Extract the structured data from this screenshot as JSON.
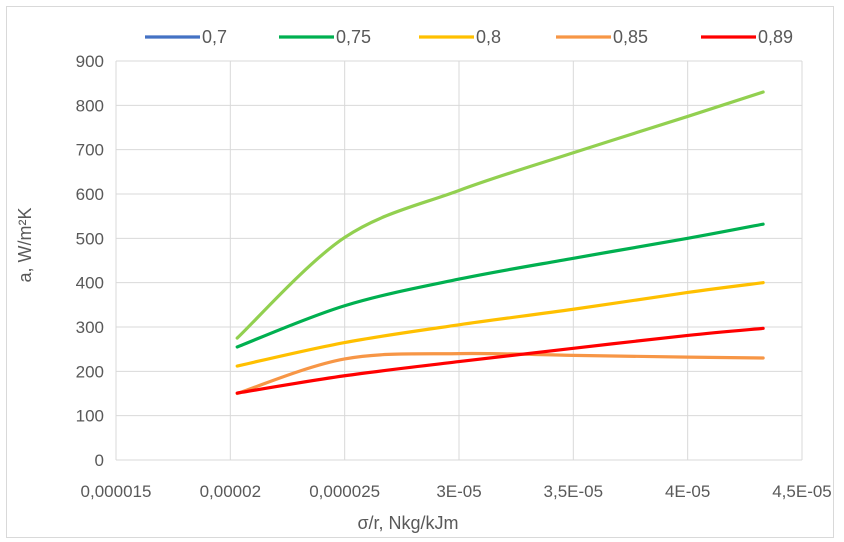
{
  "chart_data": {
    "type": "line",
    "title": "",
    "xlabel": "σ/r, Nkg/kJm",
    "ylabel": "a, W/m²K",
    "xlim": [
      1.5e-05,
      4.5e-05
    ],
    "ylim": [
      0,
      900
    ],
    "x_tick_values": [
      1.5e-05,
      2e-05,
      2.5e-05,
      3e-05,
      3.5e-05,
      4e-05,
      4.5e-05
    ],
    "x_tick_labels": [
      "0,000015",
      "0,00002",
      "0,000025",
      "3E-05",
      "3,5E-05",
      "4E-05",
      "4,5E-05"
    ],
    "y_tick_values": [
      0,
      100,
      200,
      300,
      400,
      500,
      600,
      700,
      800,
      900
    ],
    "y_tick_labels": [
      "0",
      "100",
      "200",
      "300",
      "400",
      "500",
      "600",
      "700",
      "800",
      "900"
    ],
    "grid": true,
    "legend_position": "top",
    "x": [
      2.03e-05,
      2.5e-05,
      3e-05,
      3.5e-05,
      4e-05,
      4.33e-05
    ],
    "series": [
      {
        "name": "0,7",
        "color": "#4472c4",
        "legend": true,
        "values": [
          null,
          null,
          null,
          null,
          null,
          null
        ]
      },
      {
        "name": "0,75",
        "color": "#00b050",
        "legend": true,
        "values": [
          255,
          348,
          408,
          455,
          500,
          532
        ]
      },
      {
        "name": "0,8",
        "color": "#ffc000",
        "legend": true,
        "values": [
          212,
          265,
          305,
          340,
          378,
          400
        ]
      },
      {
        "name": "0,85",
        "color": "#f79646",
        "legend": true,
        "values": [
          150,
          228,
          240,
          236,
          232,
          230
        ]
      },
      {
        "name": "0,89",
        "color": "#ff0000",
        "legend": true,
        "values": [
          151,
          190,
          222,
          252,
          281,
          297
        ]
      },
      {
        "name": "",
        "color": "#92d050",
        "legend": false,
        "values": [
          275,
          502,
          608,
          693,
          775,
          830
        ]
      }
    ]
  }
}
